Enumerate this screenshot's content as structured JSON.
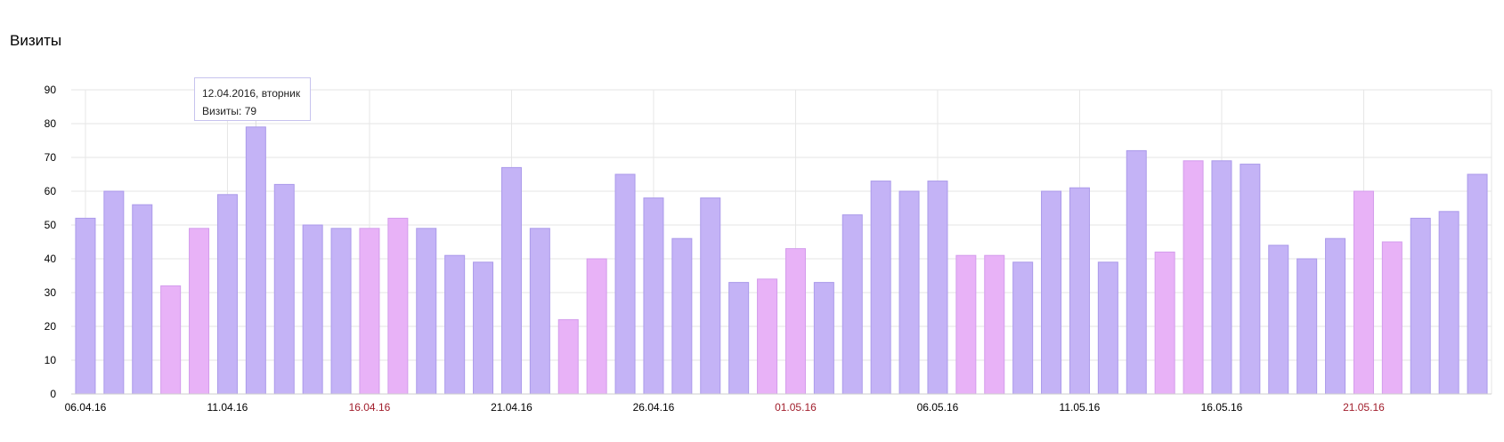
{
  "chart_data": {
    "type": "bar",
    "title": "Визиты",
    "ylim": [
      0,
      90
    ],
    "yticks": [
      0,
      10,
      20,
      30,
      40,
      50,
      60,
      70,
      80,
      90
    ],
    "grid": true,
    "x": [
      "2016-04-06",
      "2016-04-07",
      "2016-04-08",
      "2016-04-09",
      "2016-04-10",
      "2016-04-11",
      "2016-04-12",
      "2016-04-13",
      "2016-04-14",
      "2016-04-15",
      "2016-04-16",
      "2016-04-17",
      "2016-04-18",
      "2016-04-19",
      "2016-04-20",
      "2016-04-21",
      "2016-04-22",
      "2016-04-23",
      "2016-04-24",
      "2016-04-25",
      "2016-04-26",
      "2016-04-27",
      "2016-04-28",
      "2016-04-29",
      "2016-04-30",
      "2016-05-01",
      "2016-05-02",
      "2016-05-03",
      "2016-05-04",
      "2016-05-05",
      "2016-05-06",
      "2016-05-07",
      "2016-05-08",
      "2016-05-09",
      "2016-05-10",
      "2016-05-11",
      "2016-05-12",
      "2016-05-13",
      "2016-05-14",
      "2016-05-15",
      "2016-05-16",
      "2016-05-17",
      "2016-05-18",
      "2016-05-19",
      "2016-05-20",
      "2016-05-21",
      "2016-05-22",
      "2016-05-23",
      "2016-05-24",
      "2016-05-25"
    ],
    "values": [
      52,
      60,
      56,
      32,
      49,
      59,
      79,
      62,
      50,
      49,
      49,
      52,
      49,
      41,
      39,
      67,
      49,
      22,
      40,
      65,
      58,
      46,
      58,
      33,
      34,
      43,
      33,
      53,
      63,
      60,
      63,
      41,
      41,
      39,
      60,
      61,
      39,
      72,
      42,
      69,
      69,
      68,
      44,
      40,
      46,
      60,
      45,
      52,
      54,
      65
    ],
    "weekend": [
      false,
      false,
      false,
      true,
      true,
      false,
      false,
      false,
      false,
      false,
      true,
      true,
      false,
      false,
      false,
      false,
      false,
      true,
      true,
      false,
      false,
      false,
      false,
      false,
      true,
      true,
      false,
      false,
      false,
      false,
      false,
      true,
      true,
      false,
      false,
      false,
      false,
      false,
      true,
      true,
      false,
      false,
      false,
      false,
      false,
      true,
      true,
      false,
      false,
      false
    ],
    "xtick_labels": [
      {
        "index": 0,
        "label": "06.04.16",
        "weekend": false
      },
      {
        "index": 5,
        "label": "11.04.16",
        "weekend": false
      },
      {
        "index": 10,
        "label": "16.04.16",
        "weekend": true
      },
      {
        "index": 15,
        "label": "21.04.16",
        "weekend": false
      },
      {
        "index": 20,
        "label": "26.04.16",
        "weekend": false
      },
      {
        "index": 25,
        "label": "01.05.16",
        "weekend": true
      },
      {
        "index": 30,
        "label": "06.05.16",
        "weekend": false
      },
      {
        "index": 35,
        "label": "11.05.16",
        "weekend": false
      },
      {
        "index": 40,
        "label": "16.05.16",
        "weekend": false
      },
      {
        "index": 45,
        "label": "21.05.16",
        "weekend": true
      }
    ],
    "colors": {
      "weekday_bar": "#c4b3f6",
      "weekday_bar_edge": "#ab9aea",
      "weekend_bar": "#e8b2f7",
      "weekend_bar_edge": "#d39cec",
      "grid": "#e6e6e6",
      "weekend_label": "#a11d2b",
      "weekday_label": "#000000"
    },
    "tooltip": {
      "index": 6,
      "line1": "12.04.2016, вторник",
      "line2": "Визиты: 79"
    }
  }
}
